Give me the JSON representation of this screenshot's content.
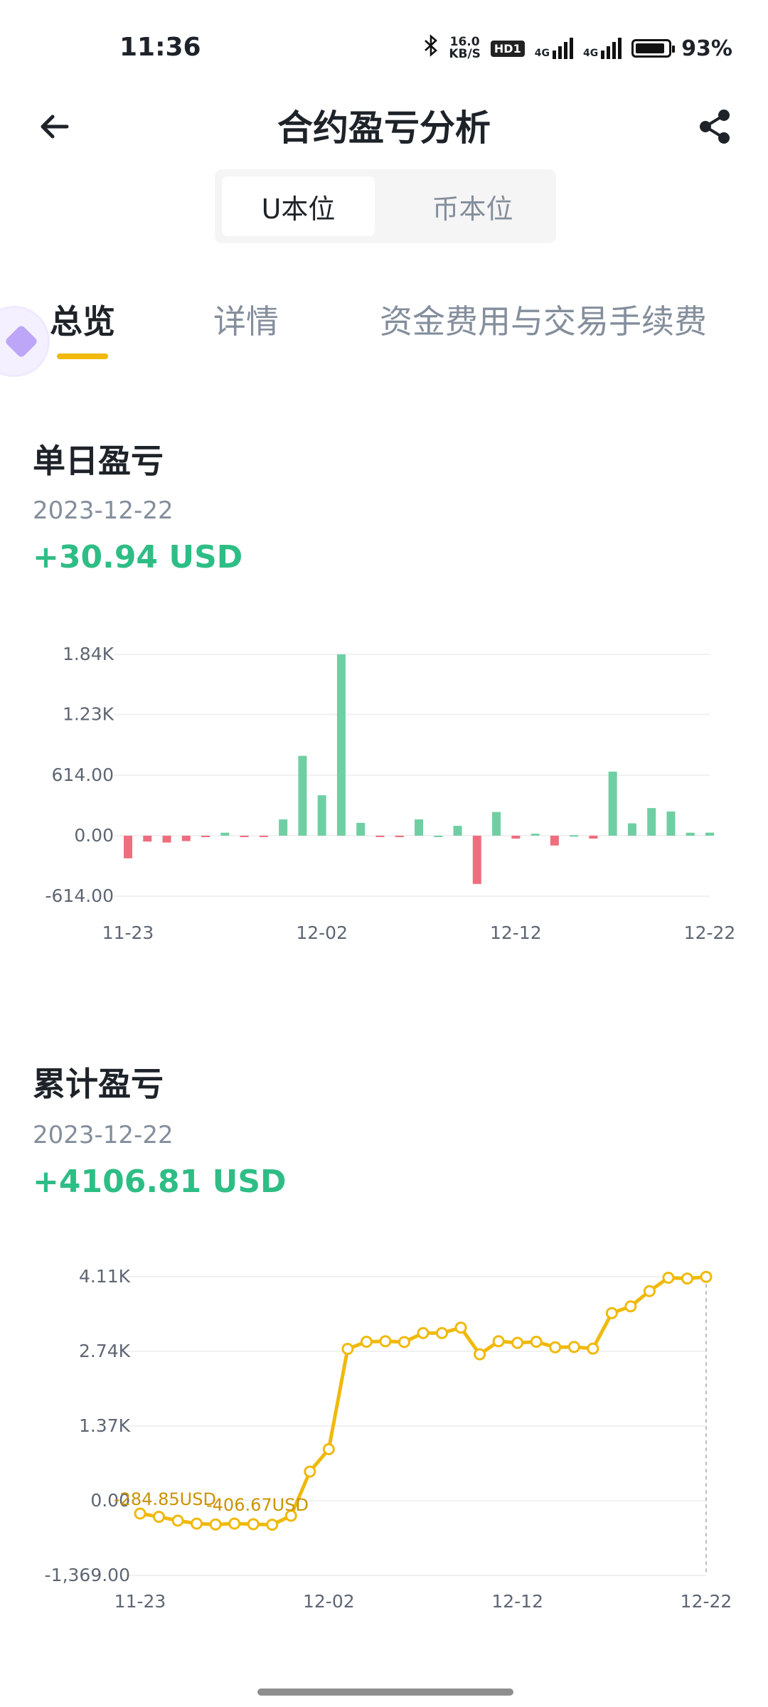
{
  "status_bar": {
    "time": "11:36",
    "net_speed_top": "16.0",
    "net_speed_unit": "KB/S",
    "hd_label": "HD1",
    "sig1_label": "4G",
    "sig2_label": "4G",
    "battery_pct": "93%",
    "battery_level": 0.93
  },
  "header": {
    "title": "合约盈亏分析",
    "back_icon": "arrow-left-icon",
    "share_icon": "share-icon"
  },
  "segment": {
    "options": [
      "U本位",
      "币本位"
    ],
    "selected": "U本位"
  },
  "tabs": {
    "items": [
      "总览",
      "详情",
      "资金费用与交易手续费"
    ],
    "active": "总览",
    "accent": "#f0b90b"
  },
  "daily": {
    "title": "单日盈亏",
    "date": "2023-12-22",
    "value": "+30.94 USD"
  },
  "cumulative": {
    "title": "累计盈亏",
    "date": "2023-12-22",
    "value": "+4106.81 USD"
  },
  "colors": {
    "positive": "#2ebd85",
    "negative": "#f6465d",
    "line": "#f0b90b",
    "bar_positive": "#6fcfa3",
    "bar_negative": "#ee6e7e"
  },
  "chart_data": [
    {
      "type": "bar",
      "title": "单日盈亏",
      "ylim": [
        -614,
        1840
      ],
      "y_ticks": [
        "1.84K",
        "1.23K",
        "614.00",
        "0.00",
        "-614.00"
      ],
      "y_tick_values": [
        1840,
        1230,
        614,
        0,
        -614
      ],
      "x_ticks": [
        "11-23",
        "12-02",
        "12-12",
        "12-22"
      ],
      "x_tick_index": [
        0,
        10,
        20,
        30
      ],
      "values": [
        -230,
        -60,
        -70,
        -55,
        -15,
        30,
        -15,
        -10,
        165,
        810,
        410,
        1840,
        130,
        -5,
        -15,
        165,
        0,
        100,
        -490,
        240,
        -30,
        20,
        -100,
        5,
        -30,
        650,
        125,
        280,
        245,
        30,
        31
      ]
    },
    {
      "type": "line",
      "title": "累计盈亏",
      "ylim": [
        -1369,
        4110
      ],
      "y_ticks": [
        "4.11K",
        "2.74K",
        "1.37K",
        "0.00",
        "-1,369.00"
      ],
      "y_tick_values": [
        4110,
        2740,
        1370,
        0,
        -1369
      ],
      "x_ticks": [
        "11-23",
        "12-02",
        "12-12",
        "12-22"
      ],
      "x_tick_index": [
        0,
        10,
        20,
        30
      ],
      "annotations": [
        "-284.85USD",
        "-406.67USD"
      ],
      "values": [
        -234,
        -294,
        -364,
        -419,
        -434,
        -419,
        -429,
        -439,
        -274,
        536,
        946,
        2786,
        2916,
        2926,
        2911,
        3076,
        3076,
        3176,
        2686,
        2926,
        2896,
        2916,
        2816,
        2821,
        2791,
        3441,
        3566,
        3846,
        4091,
        4076,
        4107
      ]
    }
  ]
}
